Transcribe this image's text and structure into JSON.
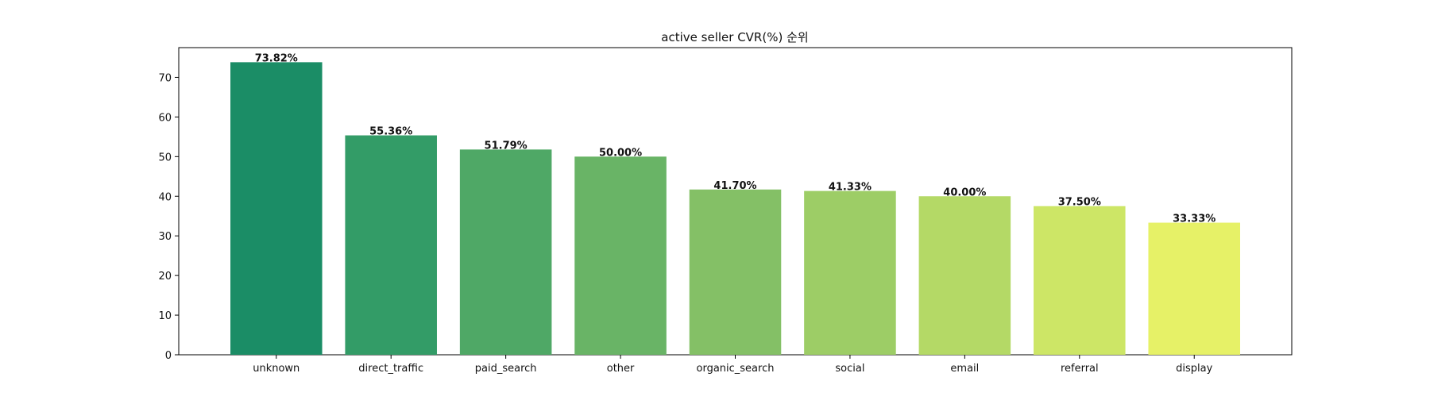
{
  "chart_data": {
    "type": "bar",
    "title": "active seller CVR(%) 순위",
    "xlabel": "",
    "ylabel": "",
    "categories": [
      "unknown",
      "direct_traffic",
      "paid_search",
      "other",
      "organic_search",
      "social",
      "email",
      "referral",
      "display"
    ],
    "values": [
      73.82,
      55.36,
      51.79,
      50.0,
      41.7,
      41.33,
      40.0,
      37.5,
      33.33
    ],
    "data_labels": [
      "73.82%",
      "55.36%",
      "51.79%",
      "50.00%",
      "41.70%",
      "41.33%",
      "40.00%",
      "37.50%",
      "33.33%"
    ],
    "bar_colors": [
      "#1b8d66",
      "#339c67",
      "#4fa866",
      "#69b466",
      "#84c066",
      "#9dcd66",
      "#b4d966",
      "#cde666",
      "#e6f167"
    ],
    "ylim": [
      0,
      77.5
    ],
    "yticks": [
      0,
      10,
      20,
      30,
      40,
      50,
      60,
      70
    ],
    "grid": false,
    "legend": "none"
  }
}
